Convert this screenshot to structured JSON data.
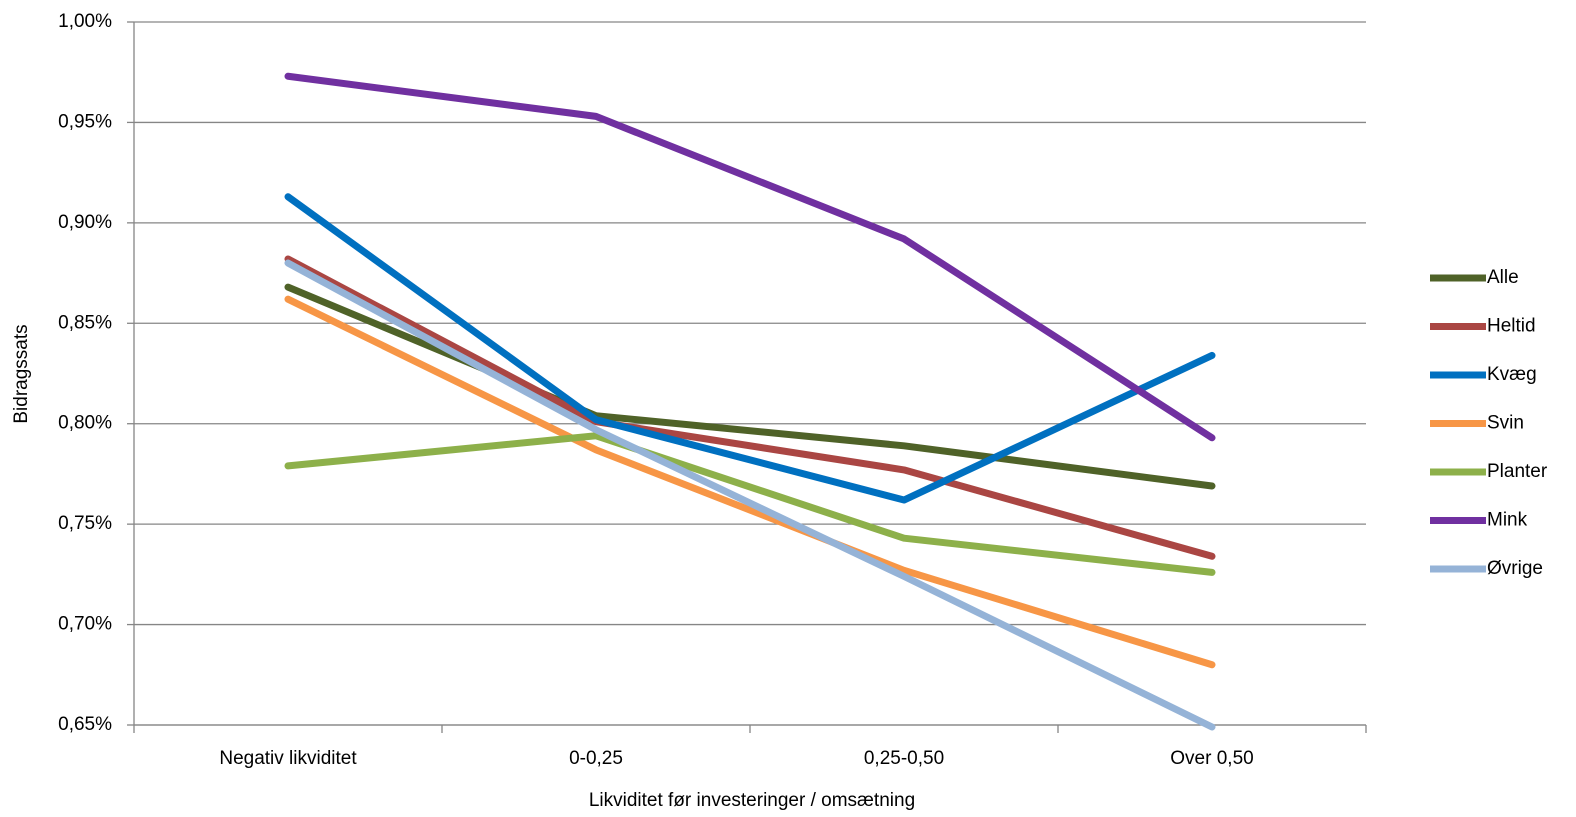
{
  "chart_data": {
    "type": "line",
    "x_label": "Likviditet før investeringer / omsætning",
    "y_label": "Bidragssats",
    "categories": [
      "Negativ likviditet",
      "0-0,25",
      "0,25-0,50",
      "Over 0,50"
    ],
    "series": [
      {
        "name": "Alle",
        "color": "#4f6228",
        "values": [
          0.868,
          0.804,
          0.789,
          0.769
        ]
      },
      {
        "name": "Heltid",
        "color": "#aa4643",
        "values": [
          0.882,
          0.801,
          0.777,
          0.734
        ]
      },
      {
        "name": "Kvæg",
        "color": "#0070c0",
        "values": [
          0.913,
          0.802,
          0.762,
          0.834
        ]
      },
      {
        "name": "Svin",
        "color": "#f79646",
        "values": [
          0.862,
          0.787,
          0.727,
          0.68
        ]
      },
      {
        "name": "Planter",
        "color": "#8db04a",
        "values": [
          0.779,
          0.794,
          0.743,
          0.726
        ]
      },
      {
        "name": "Mink",
        "color": "#7030a0",
        "values": [
          0.973,
          0.953,
          0.892,
          0.793
        ]
      },
      {
        "name": "Øvrige",
        "color": "#95b3d7",
        "values": [
          0.88,
          0.797,
          0.724,
          0.649
        ]
      }
    ],
    "ylim": [
      0.65,
      1.0
    ],
    "yticks": [
      {
        "value": 0.65,
        "label": "0,65%"
      },
      {
        "value": 0.7,
        "label": "0,70%"
      },
      {
        "value": 0.75,
        "label": "0,75%"
      },
      {
        "value": 0.8,
        "label": "0,80%"
      },
      {
        "value": 0.85,
        "label": "0,85%"
      },
      {
        "value": 0.9,
        "label": "0,90%"
      },
      {
        "value": 0.95,
        "label": "0,95%"
      },
      {
        "value": 1.0,
        "label": "1,00%"
      }
    ],
    "grid": true,
    "legend": "right"
  }
}
